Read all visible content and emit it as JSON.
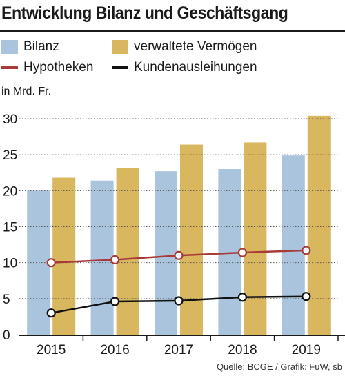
{
  "title": "Entwicklung Bilanz und Geschäftsgang",
  "unit_label": "in Mrd. Fr.",
  "source": "Quelle: BCGE / Grafik: FuW, sb",
  "colors": {
    "bilanz": "#a9c4dc",
    "vermoegen": "#d8b75e",
    "hypotheken": "#a83a3a",
    "kundenausleihungen": "#111111",
    "grid": "#555555"
  },
  "legend": [
    {
      "label": "Bilanz",
      "kind": "bar",
      "color_key": "bilanz"
    },
    {
      "label": "verwaltete Vermögen",
      "kind": "bar",
      "color_key": "vermoegen"
    },
    {
      "label": "Hypotheken",
      "kind": "line",
      "color_key": "hypotheken"
    },
    {
      "label": "Kundenausleihungen",
      "kind": "line",
      "color_key": "kundenausleihungen"
    }
  ],
  "chart_data": {
    "type": "bar",
    "categories": [
      "2015",
      "2016",
      "2017",
      "2018",
      "2019"
    ],
    "series": [
      {
        "name": "Bilanz",
        "type": "bar",
        "values": [
          20.0,
          21.4,
          22.7,
          23.0,
          24.9
        ]
      },
      {
        "name": "verwaltete Vermögen",
        "type": "bar",
        "values": [
          21.8,
          23.1,
          26.4,
          26.7,
          30.4
        ]
      },
      {
        "name": "Hypotheken",
        "type": "line",
        "values": [
          10.0,
          10.4,
          11.0,
          11.4,
          11.7
        ]
      },
      {
        "name": "Kundenausleihungen",
        "type": "line",
        "values": [
          3.0,
          4.6,
          4.7,
          5.2,
          5.3
        ]
      }
    ],
    "ylim": [
      0,
      30
    ],
    "yticks": [
      0,
      5,
      10,
      15,
      20,
      25,
      30
    ],
    "grid": "dotted horizontal"
  }
}
